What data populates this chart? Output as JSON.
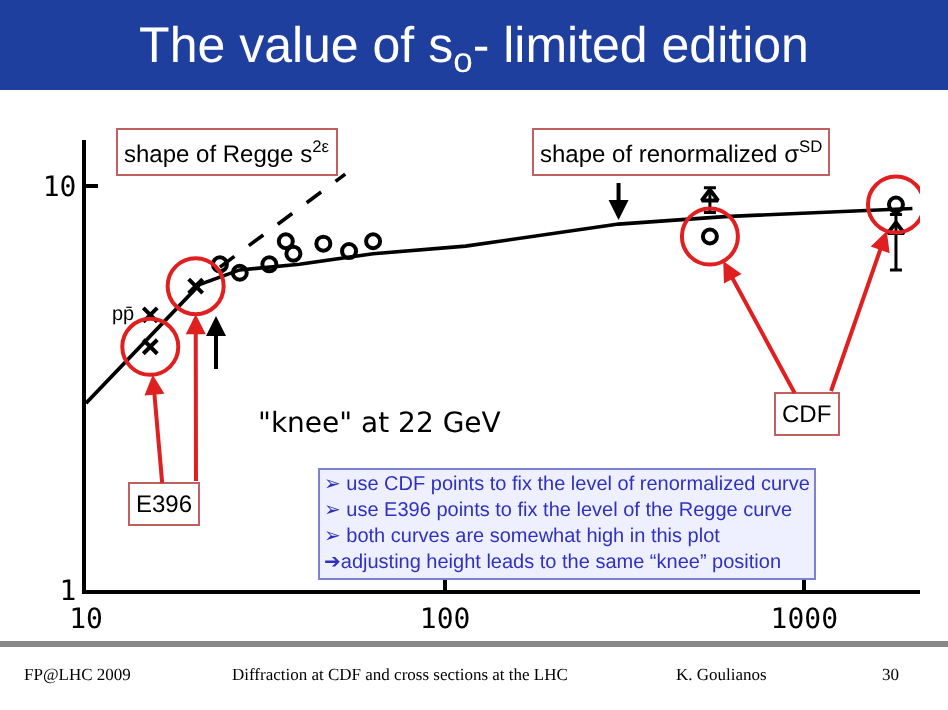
{
  "chart_data": {
    "type": "scatter",
    "title": "The value of s$_{o}$- limited edition",
    "xlim": [
      10,
      2100
    ],
    "ylim": [
      1,
      13
    ],
    "xticks": [
      10,
      100,
      1000
    ],
    "yticks": [
      1,
      10
    ],
    "log": "xy",
    "grid": false,
    "series": [
      {
        "color": "#000000",
        "marker": "cross",
        "x": [
          15.1,
          20.2
        ],
        "values": [
          4.0,
          5.65
        ]
      },
      {
        "color": "#000000",
        "marker": "cross",
        "x": [
          15.1
        ],
        "values": [
          4.8
        ]
      },
      {
        "color": "#000000",
        "marker": "circle",
        "x": [
          23.6,
          26.8,
          32.4,
          36,
          37.8,
          45.8,
          54,
          63
        ],
        "values": [
          6.4,
          6.1,
          6.4,
          7.3,
          6.8,
          7.2,
          6.9,
          7.3
        ]
      },
      {
        "color": "#000000",
        "marker": "circle",
        "x": [
          546,
          1800
        ],
        "values": [
          7.5,
          9.0
        ]
      },
      {
        "color": "#000000",
        "marker": "triangle",
        "x": [
          546,
          1800
        ],
        "values": [
          9.4,
          7.8
        ],
        "errors": [
          [
            8.6,
            9.9
          ],
          [
            6.2,
            8.5
          ]
        ]
      },
      {
        "type": "line",
        "color": "#000000",
        "marker": "none",
        "line_style": "solid",
        "x": [
          10,
          20.7,
          26.8,
          39.3,
          63,
          114,
          304,
          600,
          2000
        ],
        "values": [
          2.9,
          5.7,
          6.2,
          6.4,
          6.8,
          7.1,
          8.05,
          8.4,
          8.8
        ]
      },
      {
        "type": "line",
        "color": "#000000",
        "marker": "none",
        "line_style": "dashed",
        "x": [
          23.6,
          52.7
        ],
        "values": [
          6.3,
          10.7
        ]
      }
    ],
    "annotations": [
      "shape of Regge s$^{2ε}$",
      {
        "text": "shape of renormalized σ$^{SD}$",
        "x": 304,
        "y": 8.05
      },
      "\"knee\" at 22 GeV",
      {
        "text": "E396",
        "x": 15.1,
        "y": 4.0
      },
      {
        "text": "CDF",
        "x": 546,
        "y": 7.5
      },
      {
        "text": "pp̄",
        "x": 15.1,
        "y": 4.8
      },
      "➢ use CDF points to fix the level of renormalized curve\n➢ use E396 points to fix the level of the Regge curve\n➢ both curves are somewhat high in this plot\n➔adjusting height leads to the same “knee” position",
      "FP@LHC 2009",
      "Diffraction at CDF and cross sections at the LHC",
      "K. Goulianos",
      "30"
    ]
  }
}
